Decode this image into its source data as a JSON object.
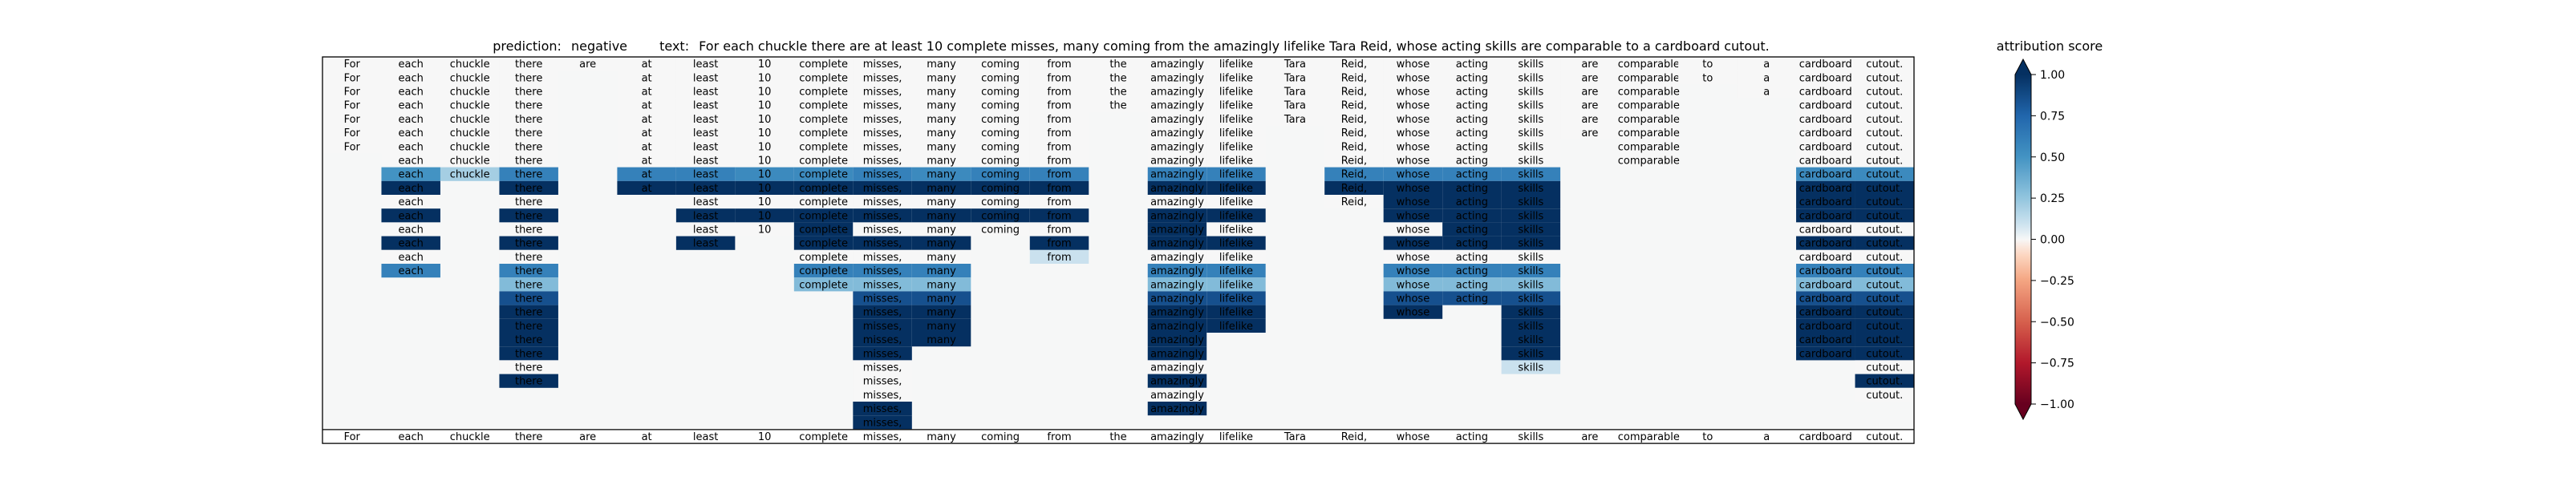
{
  "chart_data": {
    "type": "heatmap",
    "title_prefix": "prediction:",
    "prediction": "negative",
    "text_prefix": "text:",
    "text": "For each chuckle there are at least 10 complete misses, many coming from the amazingly lifelike Tara Reid, whose acting skills are comparable to a cardboard cutout.",
    "tokens": [
      "For",
      "each",
      "chuckle",
      "there",
      "are",
      "at",
      "least",
      "10",
      "complete",
      "misses,",
      "many",
      "coming",
      "from",
      "the",
      "amazingly",
      "lifelike",
      "Tara",
      "Reid,",
      "whose",
      "acting",
      "skills",
      "are",
      "comparable",
      "to",
      "a",
      "cardboard",
      "cutout."
    ],
    "rows": [
      [
        0,
        0,
        0,
        0,
        0,
        0,
        0,
        0,
        0,
        0,
        0,
        0,
        0,
        0,
        0,
        0,
        0,
        0,
        0,
        0,
        0,
        0,
        0,
        0,
        0,
        0,
        0
      ],
      [
        0,
        0,
        0,
        0,
        null,
        0,
        0,
        0,
        0,
        0,
        0,
        0,
        0,
        0,
        0,
        0,
        0,
        0,
        0,
        0,
        0,
        0,
        0,
        0,
        0,
        0,
        0
      ],
      [
        0,
        0,
        0,
        0,
        null,
        0,
        0,
        0,
        0,
        0,
        0,
        0,
        0,
        0,
        0,
        0,
        0,
        0,
        0,
        0,
        0,
        0,
        0,
        null,
        0,
        0,
        0
      ],
      [
        0,
        0,
        0,
        0,
        null,
        0,
        0,
        0,
        0,
        0,
        0,
        0,
        0,
        0,
        0,
        0,
        0,
        0,
        0,
        0,
        0,
        0,
        0,
        null,
        null,
        0,
        0
      ],
      [
        0,
        0,
        0,
        0,
        null,
        0,
        0,
        0,
        0,
        0,
        0,
        0,
        0,
        null,
        0,
        0,
        0,
        0,
        0,
        0,
        0,
        0,
        0,
        null,
        null,
        0,
        0
      ],
      [
        0,
        0,
        0,
        0,
        null,
        0,
        0,
        0,
        0,
        0,
        0,
        0,
        0,
        null,
        0,
        0,
        null,
        0,
        0,
        0,
        0,
        0,
        0,
        null,
        null,
        0,
        0
      ],
      [
        0,
        0,
        0,
        0,
        null,
        0,
        0,
        0,
        0,
        0,
        0,
        0,
        0,
        null,
        0,
        0,
        null,
        0,
        0,
        0,
        0,
        null,
        0,
        null,
        null,
        0,
        0
      ],
      [
        null,
        0,
        0,
        0,
        null,
        0,
        0,
        0,
        0,
        0,
        0,
        0,
        0,
        null,
        0,
        0,
        null,
        0,
        0,
        0,
        0,
        null,
        0,
        null,
        null,
        0,
        0
      ],
      [
        null,
        0.5,
        0.2,
        0.6,
        null,
        0.6,
        0.6,
        0.55,
        0.55,
        0.6,
        0.55,
        0.6,
        0.6,
        null,
        0.6,
        0.6,
        null,
        0.6,
        0.6,
        0.6,
        0.6,
        null,
        null,
        null,
        null,
        0.55,
        0.55
      ],
      [
        null,
        1,
        null,
        1,
        null,
        1,
        1,
        1,
        1,
        1,
        1,
        1,
        1,
        null,
        1,
        1,
        null,
        1,
        1,
        1,
        1,
        null,
        null,
        null,
        null,
        1,
        1
      ],
      [
        null,
        0,
        null,
        0,
        null,
        null,
        0,
        0,
        0,
        0,
        0,
        0,
        0,
        null,
        0,
        0,
        null,
        0,
        1,
        1,
        1,
        null,
        null,
        null,
        null,
        1,
        1
      ],
      [
        null,
        1,
        null,
        1,
        null,
        null,
        1,
        1,
        1,
        1,
        1,
        1,
        1,
        null,
        1,
        1,
        null,
        null,
        1,
        1,
        1,
        null,
        null,
        null,
        null,
        1,
        1
      ],
      [
        null,
        0,
        null,
        0,
        null,
        null,
        0,
        0,
        1,
        0,
        0,
        0,
        0,
        null,
        1,
        0,
        null,
        null,
        0,
        1,
        1,
        null,
        null,
        null,
        null,
        0,
        0
      ],
      [
        null,
        1,
        null,
        1,
        null,
        null,
        1,
        null,
        1,
        1,
        1,
        null,
        1,
        null,
        1,
        1,
        null,
        null,
        1,
        1,
        1,
        null,
        null,
        null,
        null,
        1,
        1
      ],
      [
        null,
        0,
        null,
        0,
        null,
        null,
        null,
        null,
        0,
        0,
        0,
        null,
        0.1,
        null,
        0,
        0,
        null,
        null,
        0,
        0,
        0,
        null,
        null,
        null,
        null,
        0,
        0
      ],
      [
        null,
        0.6,
        null,
        0.6,
        null,
        null,
        null,
        null,
        0.6,
        0.6,
        0.6,
        null,
        null,
        null,
        0.6,
        0.6,
        null,
        null,
        0.6,
        0.6,
        0.6,
        null,
        null,
        null,
        null,
        0.6,
        0.6
      ],
      [
        null,
        null,
        null,
        0.3,
        null,
        null,
        null,
        null,
        0.3,
        0.3,
        0.3,
        null,
        null,
        null,
        0.3,
        0.3,
        null,
        null,
        0.3,
        0.3,
        0.3,
        null,
        null,
        null,
        null,
        0.3,
        0.3
      ],
      [
        null,
        null,
        null,
        0.85,
        null,
        null,
        null,
        null,
        null,
        0.85,
        0.85,
        null,
        null,
        null,
        0.85,
        0.85,
        null,
        null,
        0.85,
        0.85,
        0.85,
        null,
        null,
        null,
        null,
        0.85,
        0.85
      ],
      [
        null,
        null,
        null,
        1,
        null,
        null,
        null,
        null,
        null,
        1,
        1,
        null,
        null,
        null,
        1,
        1,
        null,
        null,
        1,
        null,
        1,
        null,
        null,
        null,
        null,
        1,
        1
      ],
      [
        null,
        null,
        null,
        1,
        null,
        null,
        null,
        null,
        null,
        1,
        1,
        null,
        null,
        null,
        1,
        1,
        null,
        null,
        null,
        null,
        1,
        null,
        null,
        null,
        null,
        1,
        1
      ],
      [
        null,
        null,
        null,
        1,
        null,
        null,
        null,
        null,
        null,
        1,
        1,
        null,
        null,
        null,
        1,
        null,
        null,
        null,
        null,
        null,
        1,
        null,
        null,
        null,
        null,
        1,
        1
      ],
      [
        null,
        null,
        null,
        1,
        null,
        null,
        null,
        null,
        null,
        1,
        null,
        null,
        null,
        null,
        1,
        null,
        null,
        null,
        null,
        null,
        1,
        null,
        null,
        null,
        null,
        1,
        1
      ],
      [
        null,
        null,
        null,
        0,
        null,
        null,
        null,
        null,
        null,
        0,
        null,
        null,
        null,
        null,
        0,
        null,
        null,
        null,
        null,
        null,
        0.1,
        null,
        null,
        null,
        null,
        null,
        0
      ],
      [
        null,
        null,
        null,
        1,
        null,
        null,
        null,
        null,
        null,
        0,
        null,
        null,
        null,
        null,
        1,
        null,
        null,
        null,
        null,
        null,
        null,
        null,
        null,
        null,
        null,
        null,
        1
      ],
      [
        null,
        null,
        null,
        null,
        null,
        null,
        null,
        null,
        null,
        0,
        null,
        null,
        null,
        null,
        0,
        null,
        null,
        null,
        null,
        null,
        null,
        null,
        null,
        null,
        null,
        null,
        0
      ],
      [
        null,
        null,
        null,
        null,
        null,
        null,
        null,
        null,
        null,
        1,
        null,
        null,
        null,
        null,
        1,
        null,
        null,
        null,
        null,
        null,
        null,
        null,
        null,
        null,
        null,
        null,
        null
      ],
      [
        null,
        null,
        null,
        null,
        null,
        null,
        null,
        null,
        null,
        1,
        null,
        null,
        null,
        null,
        null,
        null,
        null,
        null,
        null,
        null,
        null,
        null,
        null,
        null,
        null,
        null,
        null
      ]
    ],
    "colorbar": {
      "label": "attribution score",
      "min": -1,
      "max": 1,
      "ticks": [
        -1,
        -0.75,
        -0.5,
        -0.25,
        0,
        0.25,
        0.5,
        0.75,
        1
      ],
      "tick_labels": [
        "−1.00",
        "−0.75",
        "−0.50",
        "−0.25",
        "0.00",
        "0.25",
        "0.50",
        "0.75",
        "1.00"
      ],
      "colormap": "RdBu",
      "extend": "both"
    }
  }
}
